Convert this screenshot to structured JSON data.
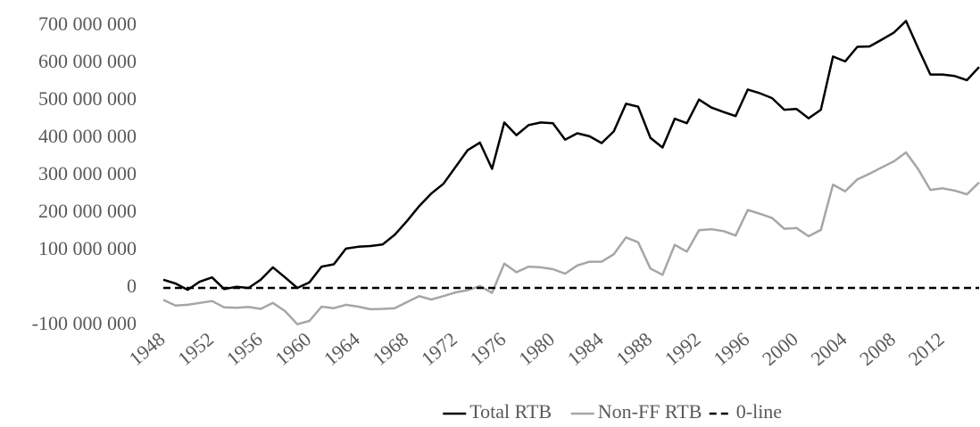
{
  "chart_data": {
    "type": "line",
    "categories": [
      "1948",
      null,
      null,
      null,
      "1952",
      null,
      null,
      null,
      "1956",
      null,
      null,
      null,
      "1960",
      null,
      null,
      null,
      "1964",
      null,
      null,
      null,
      "1968",
      null,
      null,
      null,
      "1972",
      null,
      null,
      null,
      "1976",
      null,
      null,
      null,
      "1980",
      null,
      null,
      null,
      "1984",
      null,
      null,
      null,
      "1988",
      null,
      null,
      null,
      "1992",
      null,
      null,
      null,
      "1996",
      null,
      null,
      null,
      "2000",
      null,
      null,
      null,
      "2004",
      null,
      null,
      null,
      "2008",
      null,
      null,
      null,
      "2012",
      null,
      null,
      null
    ],
    "series": [
      {
        "name": "Total RTB",
        "color": "#000000",
        "dashed": false,
        "values": [
          22000000,
          12000000,
          -5000000,
          17000000,
          28000000,
          -3000000,
          3000000,
          0,
          22000000,
          55000000,
          28000000,
          0,
          15000000,
          57000000,
          63000000,
          105000000,
          110000000,
          112000000,
          116000000,
          142000000,
          178000000,
          218000000,
          252000000,
          278000000,
          323000000,
          368000000,
          388000000,
          318000000,
          442000000,
          408000000,
          435000000,
          442000000,
          440000000,
          396000000,
          413000000,
          405000000,
          387000000,
          418000000,
          492000000,
          484000000,
          401000000,
          375000000,
          452000000,
          440000000,
          503000000,
          482000000,
          470000000,
          459000000,
          530000000,
          520000000,
          507000000,
          476000000,
          478000000,
          453000000,
          476000000,
          618000000,
          605000000,
          644000000,
          645000000,
          663000000,
          682000000,
          713000000,
          640000000,
          570000000,
          570000000,
          566000000,
          555000000,
          590000000
        ]
      },
      {
        "name": "Non-FF RTB",
        "color": "#a6a6a6",
        "dashed": false,
        "values": [
          -32000000,
          -47000000,
          -45000000,
          -40000000,
          -35000000,
          -52000000,
          -53000000,
          -51000000,
          -56000000,
          -40000000,
          -62000000,
          -97000000,
          -88000000,
          -50000000,
          -54000000,
          -45000000,
          -50000000,
          -57000000,
          -56000000,
          -54000000,
          -38000000,
          -22000000,
          -31000000,
          -22000000,
          -12000000,
          -6000000,
          5000000,
          -13000000,
          65000000,
          42000000,
          57000000,
          55000000,
          50000000,
          38000000,
          60000000,
          70000000,
          70000000,
          90000000,
          135000000,
          122000000,
          52000000,
          35000000,
          115000000,
          97000000,
          154000000,
          157000000,
          152000000,
          140000000,
          208000000,
          198000000,
          187000000,
          158000000,
          160000000,
          138000000,
          155000000,
          276000000,
          258000000,
          290000000,
          305000000,
          322000000,
          338000000,
          362000000,
          317000000,
          262000000,
          266000000,
          260000000,
          250000000,
          282000000
        ]
      },
      {
        "name": "0-line",
        "color": "#000000",
        "dashed": true,
        "values": [
          0,
          0,
          0,
          0,
          0,
          0,
          0,
          0,
          0,
          0,
          0,
          0,
          0,
          0,
          0,
          0,
          0,
          0,
          0,
          0,
          0,
          0,
          0,
          0,
          0,
          0,
          0,
          0,
          0,
          0,
          0,
          0,
          0,
          0,
          0,
          0,
          0,
          0,
          0,
          0,
          0,
          0,
          0,
          0,
          0,
          0,
          0,
          0,
          0,
          0,
          0,
          0,
          0,
          0,
          0,
          0,
          0,
          0,
          0,
          0,
          0,
          0,
          0,
          0,
          0,
          0,
          0,
          0
        ]
      }
    ],
    "ylim": [
      -100000000,
      700000000
    ],
    "yticks": [
      {
        "value": -100000000,
        "label": "-100 000 000"
      },
      0,
      {
        "value": 100000000,
        "label": "100 000 000"
      },
      {
        "value": 200000000,
        "label": "200 000 000"
      },
      {
        "value": 300000000,
        "label": "300 000 000"
      },
      {
        "value": 400000000,
        "label": "400 000 000"
      },
      {
        "value": 500000000,
        "label": "500 000 000"
      },
      {
        "value": 600000000,
        "label": "600 000 000"
      },
      {
        "value": 700000000,
        "label": "700 000 000"
      }
    ],
    "legend": "bottom"
  }
}
